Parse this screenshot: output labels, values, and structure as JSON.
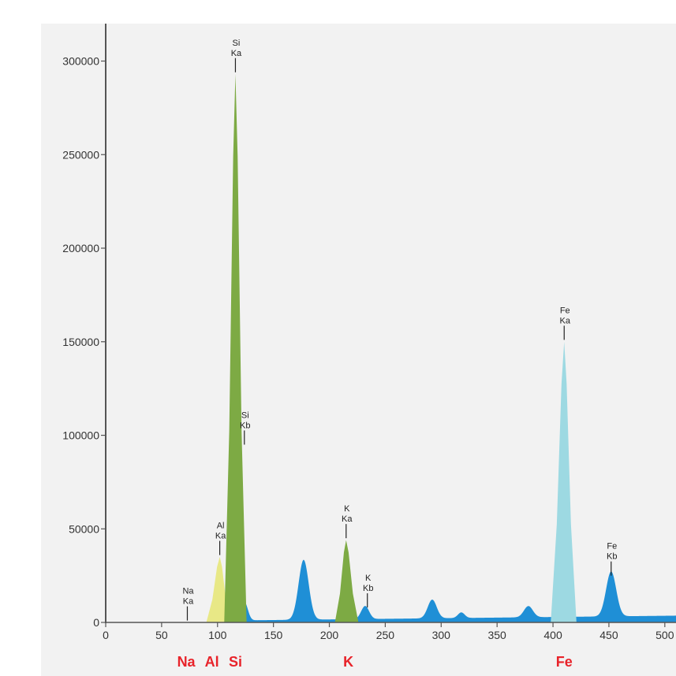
{
  "chart_data": {
    "type": "area",
    "title": "",
    "xlabel": "",
    "ylabel": "",
    "xlim": [
      0,
      510
    ],
    "ylim": [
      0,
      320000
    ],
    "x_ticks": [
      0,
      50,
      100,
      150,
      200,
      250,
      300,
      350,
      400,
      450,
      500
    ],
    "y_ticks": [
      0,
      50000,
      100000,
      150000,
      200000,
      250000,
      300000
    ],
    "grid": false,
    "legend": "none",
    "colors": {
      "background": "#f2f2f2",
      "axis": "#555555",
      "spectrum": "#1f8fd6",
      "al_peak": "#e8e886",
      "si_peak": "#7daa44",
      "k_peak": "#7daa44",
      "fe_peak": "#9dd9e2",
      "element_label": "#e8232a"
    },
    "background_peaks": [
      {
        "center": 124,
        "height": 10000,
        "sigma": 3
      },
      {
        "center": 177,
        "height": 32000,
        "sigma": 4.5
      },
      {
        "center": 232,
        "height": 7000,
        "sigma": 3.5
      },
      {
        "center": 292,
        "height": 10000,
        "sigma": 4
      },
      {
        "center": 318,
        "height": 3000,
        "sigma": 3
      },
      {
        "center": 378,
        "height": 6000,
        "sigma": 4
      },
      {
        "center": 452,
        "height": 24000,
        "sigma": 4.5
      }
    ],
    "highlighted_peaks": [
      {
        "element": "Al",
        "center": 102,
        "height": 35000,
        "range": [
          90,
          112
        ],
        "color": "#e8e886"
      },
      {
        "element": "Si",
        "center": 116,
        "height": 293000,
        "range": [
          106,
          126
        ],
        "color": "#7daa44"
      },
      {
        "element": "K",
        "center": 215,
        "height": 44000,
        "range": [
          205,
          226
        ],
        "color": "#7daa44"
      },
      {
        "element": "Fe",
        "center": 410,
        "height": 150000,
        "range": [
          398,
          421
        ],
        "color": "#9dd9e2"
      }
    ],
    "peak_annotations": [
      {
        "line1": "Na",
        "line2": "Ka",
        "x": 73,
        "y": 1000
      },
      {
        "line1": "Al",
        "line2": "Ka",
        "x": 102,
        "y": 36000
      },
      {
        "line1": "Si",
        "line2": "Ka",
        "x": 116,
        "y": 294000
      },
      {
        "line1": "Si",
        "line2": "Kb",
        "x": 124,
        "y": 95000
      },
      {
        "line1": "K",
        "line2": "Ka",
        "x": 215,
        "y": 45000
      },
      {
        "line1": "K",
        "line2": "Kb",
        "x": 234,
        "y": 8000
      },
      {
        "line1": "Fe",
        "line2": "Ka",
        "x": 410,
        "y": 151000
      },
      {
        "line1": "Fe",
        "line2": "Kb",
        "x": 452,
        "y": 25000
      }
    ],
    "element_labels": [
      {
        "text": "Na",
        "x": 72
      },
      {
        "text": "Al",
        "x": 95
      },
      {
        "text": "Si",
        "x": 116
      },
      {
        "text": "K",
        "x": 217
      },
      {
        "text": "Fe",
        "x": 410
      }
    ]
  }
}
